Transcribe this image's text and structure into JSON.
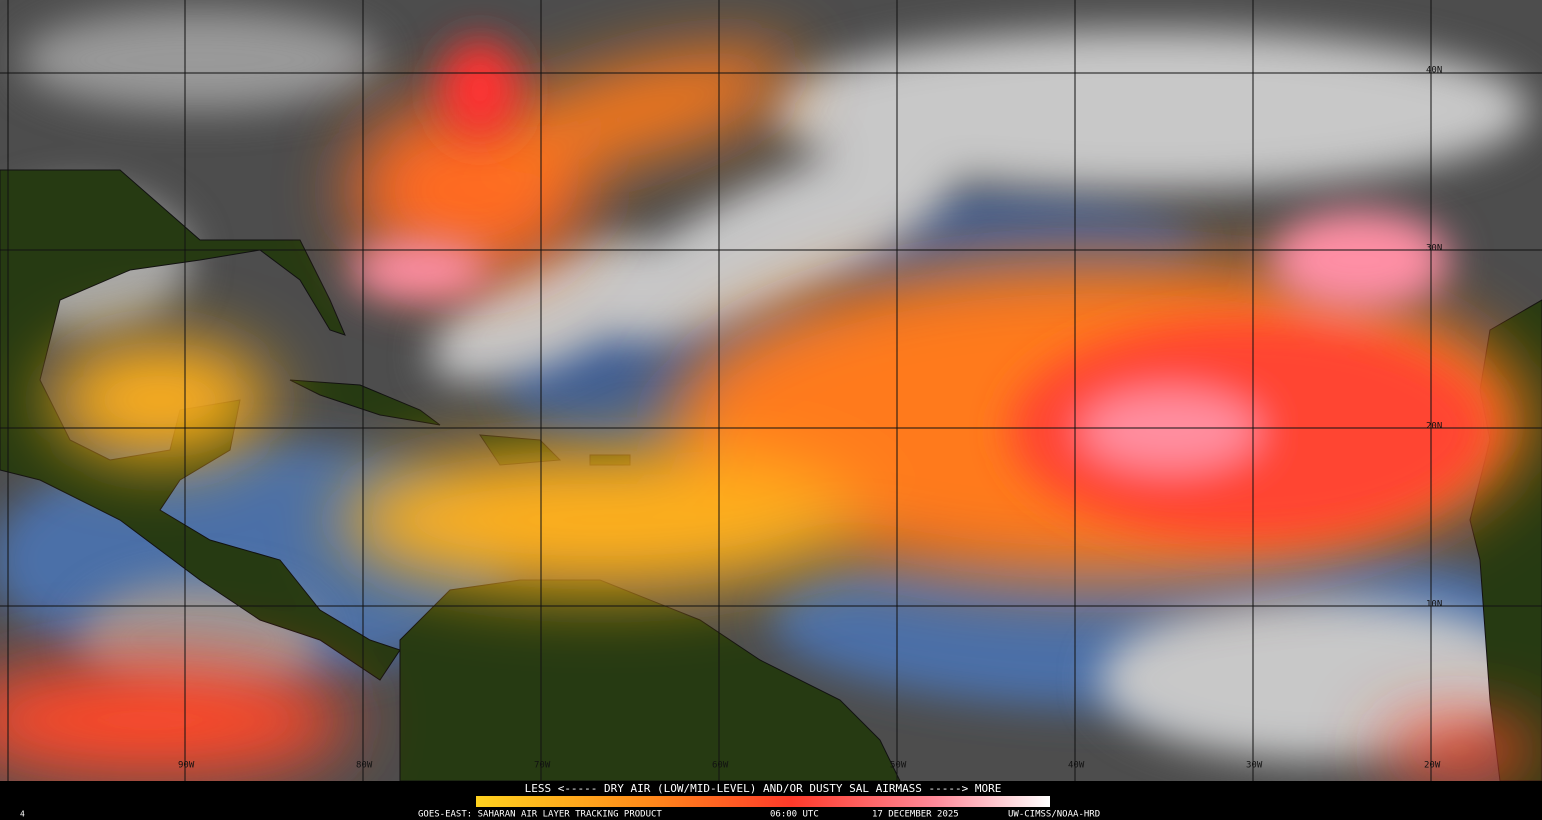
{
  "map": {
    "lat_labels": [
      "40N",
      "30N",
      "20N",
      "10N"
    ],
    "lon_labels": [
      "90W",
      "80W",
      "70W",
      "60W",
      "50W",
      "40W",
      "30W",
      "20W"
    ]
  },
  "legend": {
    "caption": "LESS <----- DRY AIR (LOW/MID-LEVEL) AND/OR DUSTY SAL AIRMASS -----> MORE"
  },
  "footer": {
    "product": "GOES-EAST: SAHARAN AIR LAYER TRACKING PRODUCT",
    "time": "06:00 UTC",
    "date": "17 DECEMBER 2025",
    "credit": "UW-CIMSS/NOAA-HRD",
    "frame": "4"
  }
}
